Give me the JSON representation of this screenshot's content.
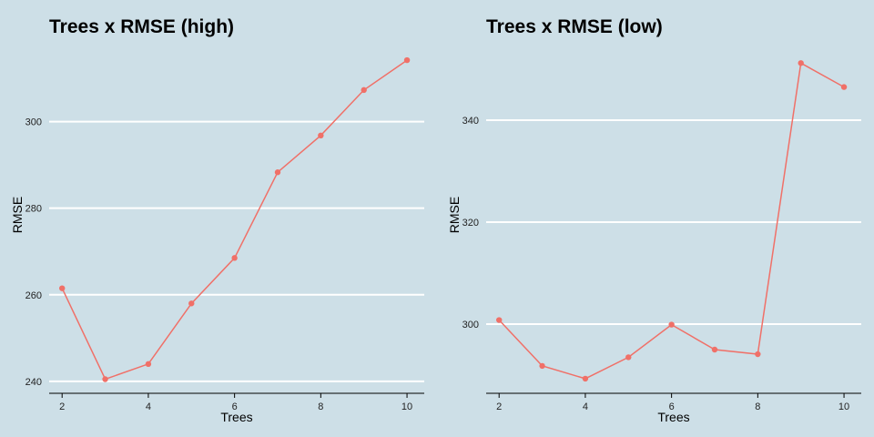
{
  "chart_data": [
    {
      "type": "line",
      "title": "Trees x RMSE (high)",
      "xlabel": "Trees",
      "ylabel": "RMSE",
      "x": [
        2,
        3,
        4,
        5,
        6,
        7,
        8,
        9,
        10
      ],
      "series": [
        {
          "values": [
            261.5,
            240.5,
            244,
            258,
            268.5,
            288.3,
            296.8,
            307.3,
            314.2
          ]
        }
      ],
      "xlim": [
        1.7,
        10.4
      ],
      "ylim": [
        238.5,
        318
      ],
      "xticks": [
        2,
        4,
        6,
        8,
        10
      ],
      "yticks": [
        240,
        260,
        280,
        300
      ],
      "grid": "horizontal-major",
      "legend": "none",
      "colors": {
        "line": "#f07068",
        "point": "#f07068",
        "grid": "#ffffff",
        "axis": "#000000",
        "background": "#cddfe7"
      }
    },
    {
      "type": "line",
      "title": "Trees x RMSE (low)",
      "xlabel": "Trees",
      "ylabel": "RMSE",
      "x": [
        2,
        3,
        4,
        5,
        6,
        7,
        8,
        9,
        10
      ],
      "series": [
        {
          "values": [
            300.8,
            291.8,
            289.3,
            293.5,
            299.9,
            295.0,
            294.1,
            351.2,
            346.5
          ]
        }
      ],
      "xlim": [
        1.7,
        10.4
      ],
      "ylim": [
        287.5,
        355
      ],
      "xticks": [
        2,
        4,
        6,
        8,
        10
      ],
      "yticks": [
        300,
        320,
        340
      ],
      "grid": "horizontal-major",
      "legend": "none",
      "colors": {
        "line": "#f07068",
        "point": "#f07068",
        "grid": "#ffffff",
        "axis": "#000000",
        "background": "#cddfe7"
      }
    }
  ]
}
